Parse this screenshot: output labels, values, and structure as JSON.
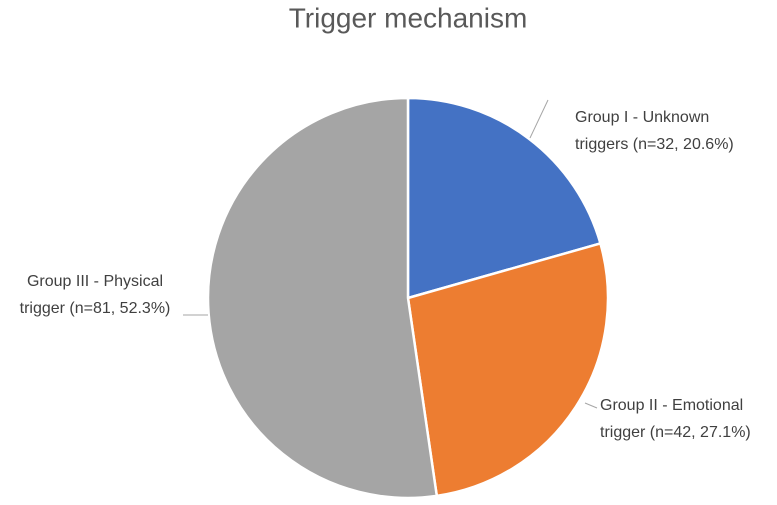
{
  "chart_data": {
    "type": "pie",
    "title": "Trigger mechanism",
    "values": [
      20.6,
      27.1,
      52.3
    ],
    "value_labels": [
      [
        "Group I - Unknown",
        "triggers (n=32, 20.6%)"
      ],
      [
        "Group II - Emotional",
        "trigger (n=42, 27.1%)"
      ],
      [
        "Group III - Physical",
        "trigger (n=81, 52.3%)"
      ]
    ],
    "colors": [
      "#4472c4",
      "#ed7d31",
      "#a5a5a5"
    ]
  }
}
